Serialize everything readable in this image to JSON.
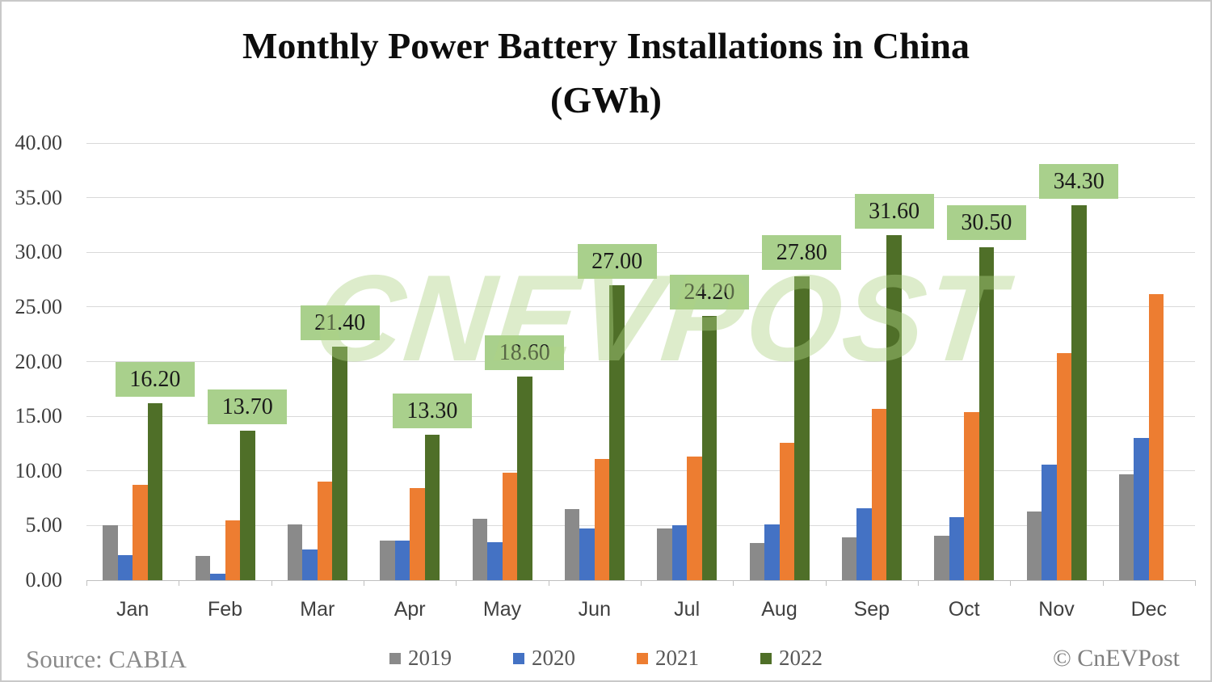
{
  "title": {
    "line1": "Monthly Power Battery Installations in China",
    "line2": "(GWh)"
  },
  "watermark": "CnEVPost",
  "source_label": "Source: CABIA",
  "credit_label": "© CnEVPost",
  "chart_data": {
    "type": "bar",
    "title": "Monthly Power Battery Installations in China (GWh)",
    "xlabel": "",
    "ylabel": "",
    "ylim": [
      0,
      40
    ],
    "ytick_step": 5,
    "yticks": [
      "40.00",
      "35.00",
      "30.00",
      "25.00",
      "20.00",
      "15.00",
      "10.00",
      "5.00",
      "0.00"
    ],
    "grid": true,
    "legend_position": "bottom",
    "categories": [
      "Jan",
      "Feb",
      "Mar",
      "Apr",
      "May",
      "Jun",
      "Jul",
      "Aug",
      "Sep",
      "Oct",
      "Nov",
      "Dec"
    ],
    "series": [
      {
        "name": "2019",
        "color": "#8a8a8a",
        "values": [
          5.0,
          2.2,
          5.1,
          3.6,
          5.6,
          6.5,
          4.7,
          3.4,
          3.9,
          4.1,
          6.3,
          9.7
        ]
      },
      {
        "name": "2020",
        "color": "#4472c4",
        "values": [
          2.3,
          0.6,
          2.8,
          3.6,
          3.5,
          4.7,
          5.0,
          5.1,
          6.6,
          5.8,
          10.6,
          13.0
        ]
      },
      {
        "name": "2021",
        "color": "#ed7d31",
        "values": [
          8.7,
          5.5,
          9.0,
          8.4,
          9.8,
          11.1,
          11.3,
          12.6,
          15.7,
          15.4,
          20.8,
          26.2
        ]
      },
      {
        "name": "2022",
        "color": "#4f6f28",
        "values": [
          16.2,
          13.7,
          21.4,
          13.3,
          18.6,
          27.0,
          24.2,
          27.8,
          31.6,
          30.5,
          34.3,
          null
        ],
        "labels": [
          "16.20",
          "13.70",
          "21.40",
          "13.30",
          "18.60",
          "27.00",
          "24.20",
          "27.80",
          "31.60",
          "30.50",
          "34.30",
          null
        ]
      }
    ],
    "label_style": {
      "bg": "#a9d08c",
      "text_color": "#1a1a1a"
    }
  },
  "legend": [
    {
      "label": "2019",
      "color": "#8a8a8a"
    },
    {
      "label": "2020",
      "color": "#4472c4"
    },
    {
      "label": "2021",
      "color": "#ed7d31"
    },
    {
      "label": "2022",
      "color": "#4f6f28"
    }
  ]
}
